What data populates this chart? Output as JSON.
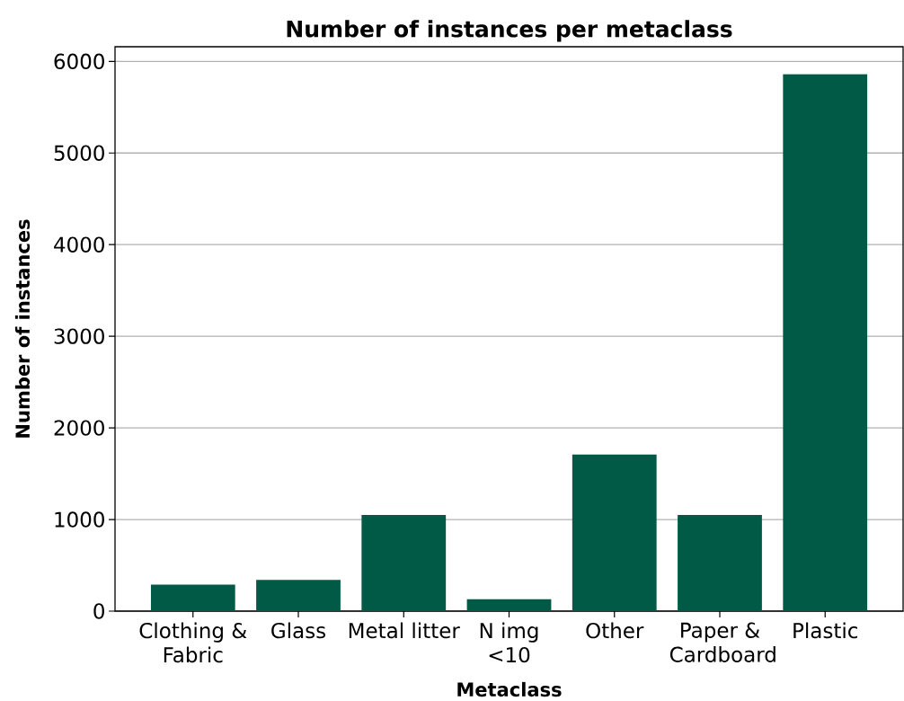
{
  "chart_data": {
    "type": "bar",
    "title": "Number of instances per metaclass",
    "xlabel": "Metaclass",
    "ylabel": "Number of instances",
    "categories": [
      "Clothing & Fabric",
      "Glass",
      "Metal litter",
      "N img <10",
      "Other",
      "Paper & Cardboard",
      "Plastic"
    ],
    "values": [
      290,
      340,
      1050,
      130,
      1710,
      1050,
      5860
    ],
    "color": "#005a46",
    "ylim": [
      0,
      6160
    ],
    "yticks": [
      0,
      1000,
      2000,
      3000,
      4000,
      5000,
      6000
    ],
    "grid": "y"
  }
}
